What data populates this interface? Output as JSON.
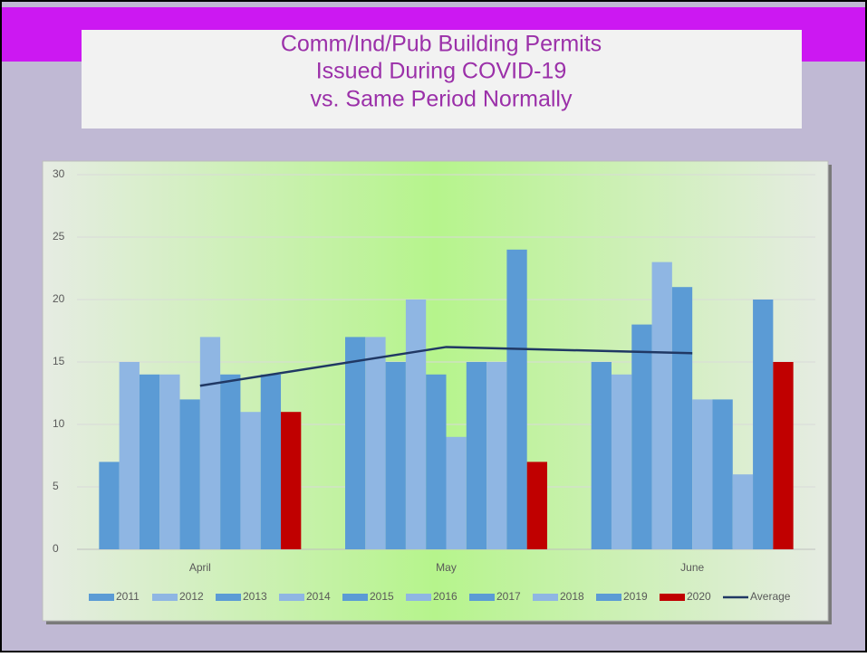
{
  "chart_data": {
    "type": "bar",
    "title": [
      "Comm/Ind/Pub Building Permits",
      "Issued During COVID-19",
      "vs. Same Period Normally"
    ],
    "categories": [
      "April",
      "May",
      "June"
    ],
    "series": [
      {
        "name": "2011",
        "color": "#5b9bd5",
        "values": [
          7,
          17,
          15
        ]
      },
      {
        "name": "2012",
        "color": "#8fb6e3",
        "values": [
          15,
          17,
          14
        ]
      },
      {
        "name": "2013",
        "color": "#5b9bd5",
        "values": [
          14,
          15,
          18
        ]
      },
      {
        "name": "2014",
        "color": "#8fb6e3",
        "values": [
          14,
          20,
          23
        ]
      },
      {
        "name": "2015",
        "color": "#5b9bd5",
        "values": [
          12,
          14,
          21
        ]
      },
      {
        "name": "2016",
        "color": "#8fb6e3",
        "values": [
          17,
          9,
          12
        ]
      },
      {
        "name": "2017",
        "color": "#5b9bd5",
        "values": [
          14,
          15,
          12
        ]
      },
      {
        "name": "2018",
        "color": "#8fb6e3",
        "values": [
          11,
          15,
          6
        ]
      },
      {
        "name": "2019",
        "color": "#5b9bd5",
        "values": [
          14,
          24,
          20
        ]
      },
      {
        "name": "2020",
        "color": "#c00000",
        "values": [
          11,
          7,
          15
        ]
      },
      {
        "name": "Average",
        "color": "#203864",
        "type": "line",
        "values": [
          13.1,
          16.2,
          15.7
        ]
      }
    ],
    "ylim": [
      0,
      30
    ],
    "yticks": [
      0,
      5,
      10,
      15,
      20,
      25,
      30
    ],
    "grid": true,
    "legend": "bottom"
  }
}
